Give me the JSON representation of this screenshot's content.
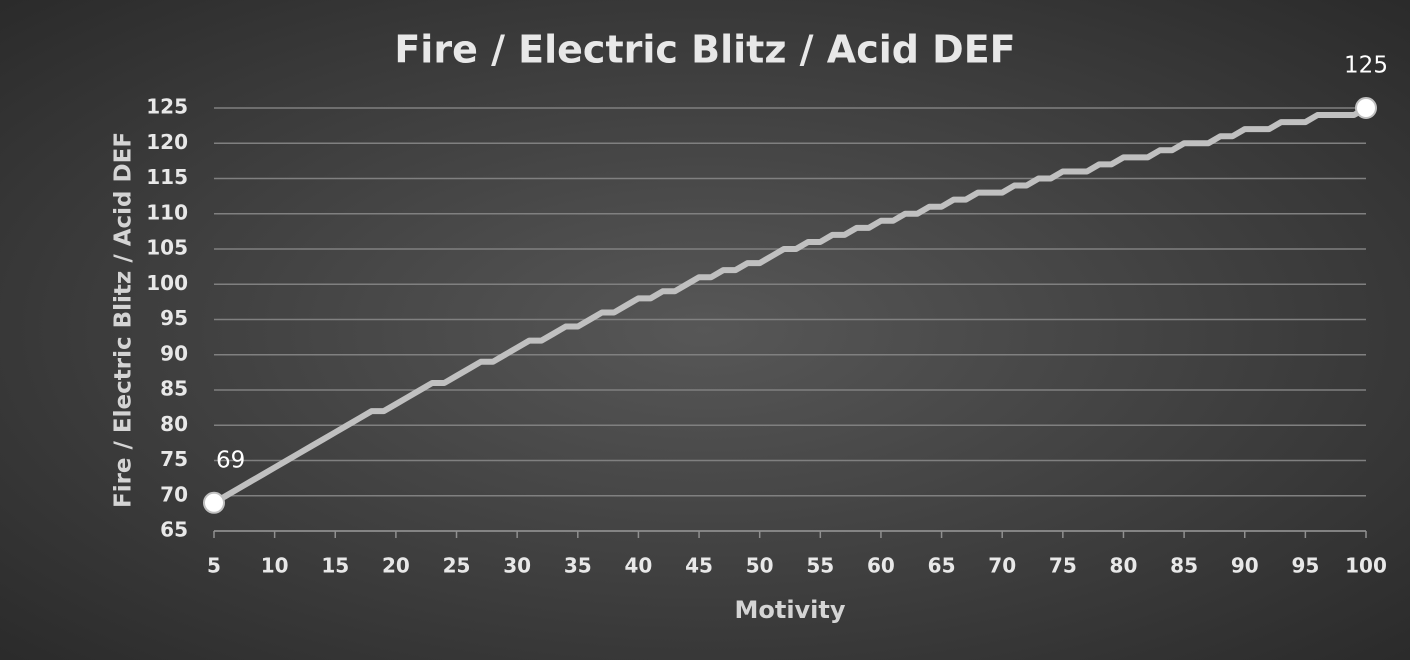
{
  "chart_data": {
    "type": "line",
    "title": "Fire / Electric Blitz / Acid DEF",
    "x_label": "Motivity",
    "y_label": "Fire / Electric Blitz / Acid DEF",
    "x": [
      5,
      6,
      7,
      8,
      9,
      10,
      11,
      12,
      13,
      14,
      15,
      16,
      17,
      18,
      19,
      20,
      21,
      22,
      23,
      24,
      25,
      26,
      27,
      28,
      29,
      30,
      31,
      32,
      33,
      34,
      35,
      36,
      37,
      38,
      39,
      40,
      41,
      42,
      43,
      44,
      45,
      46,
      47,
      48,
      49,
      50,
      51,
      52,
      53,
      54,
      55,
      56,
      57,
      58,
      59,
      60,
      61,
      62,
      63,
      64,
      65,
      66,
      67,
      68,
      69,
      70,
      71,
      72,
      73,
      74,
      75,
      76,
      77,
      78,
      79,
      80,
      81,
      82,
      83,
      84,
      85,
      86,
      87,
      88,
      89,
      90,
      91,
      92,
      93,
      94,
      95,
      96,
      97,
      98,
      99,
      100
    ],
    "values": [
      69,
      70,
      71,
      72,
      73,
      74,
      75,
      76,
      77,
      78,
      79,
      80,
      81,
      82,
      82,
      83,
      84,
      85,
      86,
      86,
      87,
      88,
      89,
      89,
      90,
      91,
      92,
      92,
      93,
      94,
      94,
      95,
      96,
      96,
      97,
      98,
      98,
      99,
      99,
      100,
      101,
      101,
      102,
      102,
      103,
      103,
      104,
      105,
      105,
      106,
      106,
      107,
      107,
      108,
      108,
      109,
      109,
      110,
      110,
      111,
      111,
      112,
      112,
      113,
      113,
      113,
      114,
      114,
      115,
      115,
      116,
      116,
      116,
      117,
      117,
      118,
      118,
      118,
      119,
      119,
      120,
      120,
      120,
      121,
      121,
      122,
      122,
      122,
      123,
      123,
      123,
      124,
      124,
      124,
      124,
      125
    ],
    "color": "#c0c0c0",
    "xlim": [
      5,
      100
    ],
    "xticks": [
      5,
      10,
      15,
      20,
      25,
      30,
      35,
      40,
      45,
      50,
      55,
      60,
      65,
      70,
      75,
      80,
      85,
      90,
      95,
      100
    ],
    "ylim": [
      65,
      125
    ],
    "yticks": [
      65,
      70,
      75,
      80,
      85,
      90,
      95,
      100,
      105,
      110,
      115,
      120,
      125
    ],
    "grid": true
  }
}
